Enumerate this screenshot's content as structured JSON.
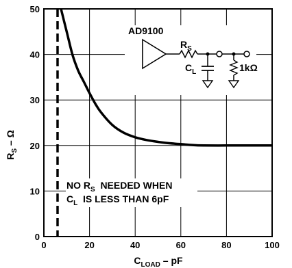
{
  "chart_data": {
    "type": "line",
    "xlabel": {
      "main": "C",
      "sub": "LOAD",
      "rest": " – pF"
    },
    "ylabel": {
      "main": "R",
      "sub": "S",
      "rest": " – Ω"
    },
    "xlim": [
      0,
      100
    ],
    "ylim": [
      0,
      50
    ],
    "xticks": [
      0,
      20,
      40,
      60,
      80,
      100
    ],
    "yticks": [
      0,
      10,
      20,
      30,
      40,
      50
    ],
    "grid": true,
    "series": [
      {
        "x": [
          7.5,
          10,
          12.5,
          15,
          17.5,
          20,
          22.5,
          25,
          30,
          35,
          40,
          45,
          50,
          55,
          60,
          65,
          70,
          80,
          90,
          100
        ],
        "y": [
          50,
          45,
          40,
          36.5,
          34,
          31.5,
          29.2,
          27.3,
          24.5,
          22.8,
          21.8,
          21.2,
          20.8,
          20.5,
          20.3,
          20.1,
          20,
          20,
          20,
          20
        ]
      }
    ],
    "threshold_x": 6,
    "annotation": {
      "line1": {
        "a": "NO R",
        "sub": "S",
        "b": "  NEEDED WHEN"
      },
      "line2": {
        "a": "C",
        "sub": "L",
        "b": "  IS LESS THAN 6pF"
      }
    },
    "inset": {
      "part": "AD9100",
      "rs": {
        "main": "R",
        "sub": "S"
      },
      "cl": {
        "main": "C",
        "sub": "L"
      },
      "load": "1kΩ"
    }
  }
}
